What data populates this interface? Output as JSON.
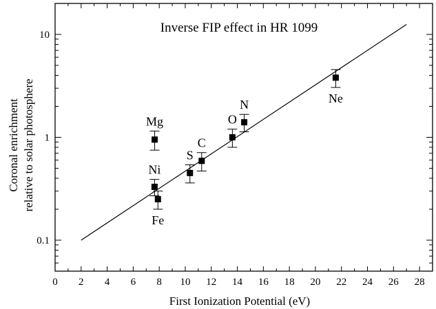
{
  "chart_data": {
    "type": "scatter",
    "title": "Inverse FIP effect in HR 1099",
    "xlabel": "First Ionization Potential (eV)",
    "ylabel_lines": [
      "Coronal enrichment",
      "relative to solar photosphere"
    ],
    "xlim": [
      0,
      29
    ],
    "ylim": [
      0.05,
      20
    ],
    "yscale": "log",
    "grid": false,
    "x_ticks": [
      0,
      2,
      4,
      6,
      8,
      10,
      12,
      14,
      16,
      18,
      20,
      22,
      24,
      26,
      28
    ],
    "y_ticks": [
      {
        "value": 0.1,
        "label": "0.1"
      },
      {
        "value": 1,
        "label": "1"
      },
      {
        "value": 10,
        "label": "10"
      }
    ],
    "points": [
      {
        "element": "Mg",
        "x": 7.65,
        "y": 0.95,
        "err_lo": 0.75,
        "err_hi": 1.15,
        "label_pos": "above"
      },
      {
        "element": "Ni",
        "x": 7.64,
        "y": 0.33,
        "err_lo": 0.27,
        "err_hi": 0.39,
        "label_pos": "above"
      },
      {
        "element": "Fe",
        "x": 7.9,
        "y": 0.25,
        "err_lo": 0.2,
        "err_hi": 0.3,
        "label_pos": "below"
      },
      {
        "element": "S",
        "x": 10.36,
        "y": 0.45,
        "err_lo": 0.36,
        "err_hi": 0.54,
        "label_pos": "above"
      },
      {
        "element": "C",
        "x": 11.26,
        "y": 0.59,
        "err_lo": 0.47,
        "err_hi": 0.71,
        "label_pos": "above"
      },
      {
        "element": "O",
        "x": 13.62,
        "y": 1.0,
        "err_lo": 0.8,
        "err_hi": 1.2,
        "label_pos": "above"
      },
      {
        "element": "N",
        "x": 14.53,
        "y": 1.4,
        "err_lo": 1.13,
        "err_hi": 1.67,
        "label_pos": "above"
      },
      {
        "element": "Ne",
        "x": 21.56,
        "y": 3.8,
        "err_lo": 3.05,
        "err_hi": 4.55,
        "label_pos": "below"
      }
    ],
    "fit_line": {
      "x": [
        2,
        27
      ],
      "y": [
        0.1,
        12.5
      ]
    },
    "colors": {
      "axis": "#000000",
      "marker": "#000000",
      "line": "#000000"
    }
  }
}
